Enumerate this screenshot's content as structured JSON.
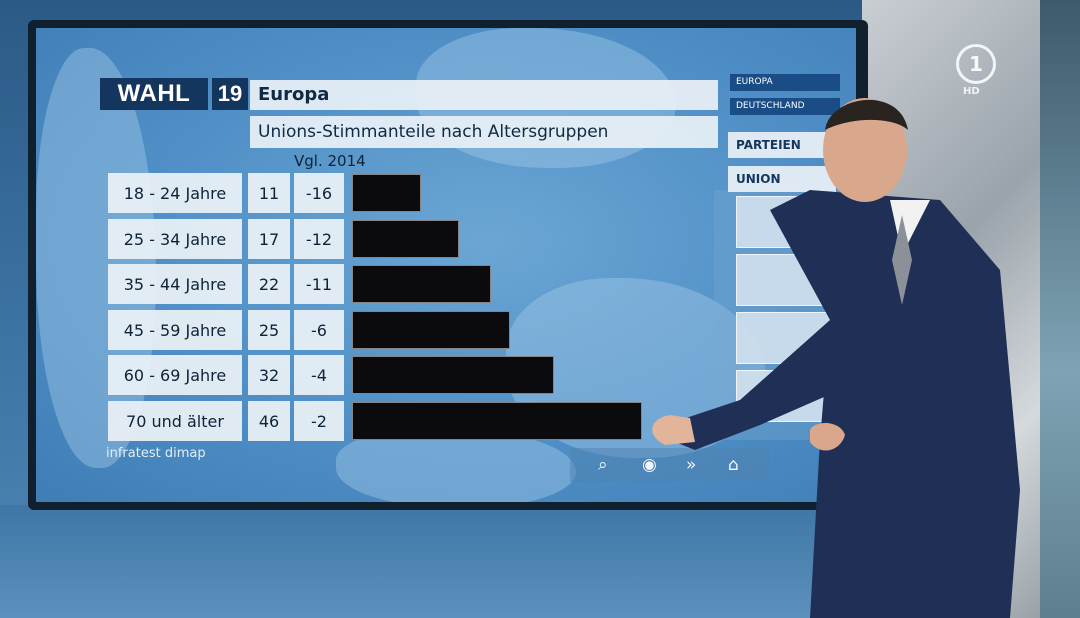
{
  "header": {
    "logo_text": "WAHL",
    "logo_year": "19",
    "title": "Europa",
    "subtitle": "Unions-Stimmanteile nach Altersgruppen"
  },
  "compare_label": "Vgl. 2014",
  "source": "infratest dimap",
  "side_menu": {
    "europa": "EUROPA",
    "deutschland": "DEUTSCHLAND",
    "parteien": "PARTEIEN",
    "union": "UNION"
  },
  "broadcaster": {
    "channel": "1",
    "quality": "HD"
  },
  "icons": [
    "search-icon",
    "target-icon",
    "forward-icon",
    "home-icon"
  ],
  "colors": {
    "bar": "#0b0b0e",
    "logo_bg": "#14365e",
    "panel": "#e8eff5"
  },
  "chart_data": {
    "type": "bar",
    "orientation": "horizontal",
    "title": "Europa",
    "subtitle": "Unions-Stimmanteile nach Altersgruppen",
    "categories": [
      "18 - 24 Jahre",
      "25 - 34 Jahre",
      "35 - 44 Jahre",
      "45 - 59 Jahre",
      "60 - 69 Jahre",
      "70 und älter"
    ],
    "values": [
      11,
      17,
      22,
      25,
      32,
      46
    ],
    "value_labels": [
      "11",
      "17",
      "22",
      "25",
      "32",
      "46"
    ],
    "change_vs_2014": [
      -16,
      -12,
      -11,
      -6,
      -4,
      -2
    ],
    "change_labels": [
      "-16",
      "-12",
      "-11",
      "-6",
      "-4",
      "-2"
    ],
    "change_header": "Vgl. 2014",
    "source": "infratest dimap"
  }
}
